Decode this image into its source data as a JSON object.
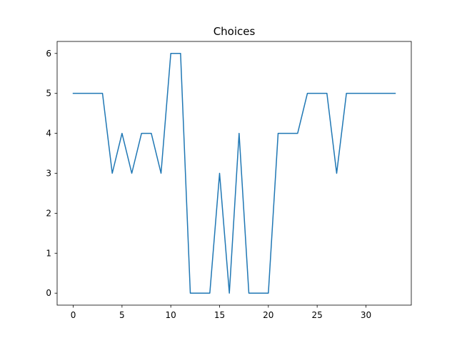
{
  "chart_data": {
    "type": "line",
    "title": "Choices",
    "xlabel": "",
    "ylabel": "",
    "xlim": [
      -1.65,
      34.65
    ],
    "ylim": [
      -0.3,
      6.3
    ],
    "xticks": [
      0,
      5,
      10,
      15,
      20,
      25,
      30
    ],
    "yticks": [
      0,
      1,
      2,
      3,
      4,
      5,
      6
    ],
    "grid": false,
    "legend": "none",
    "series": [
      {
        "color": "#1f77b4",
        "x": [
          0,
          1,
          2,
          3,
          4,
          5,
          6,
          7,
          8,
          9,
          10,
          11,
          12,
          13,
          14,
          15,
          16,
          17,
          18,
          19,
          20,
          21,
          22,
          23,
          24,
          25,
          26,
          27,
          28,
          29,
          30,
          31,
          32,
          33
        ],
        "y": [
          5,
          5,
          5,
          5,
          3,
          4,
          3,
          4,
          4,
          3,
          6,
          6,
          0,
          0,
          0,
          3,
          0,
          4,
          0,
          0,
          0,
          4,
          4,
          4,
          5,
          5,
          5,
          3,
          5,
          5,
          5,
          5,
          5,
          5
        ]
      }
    ]
  }
}
